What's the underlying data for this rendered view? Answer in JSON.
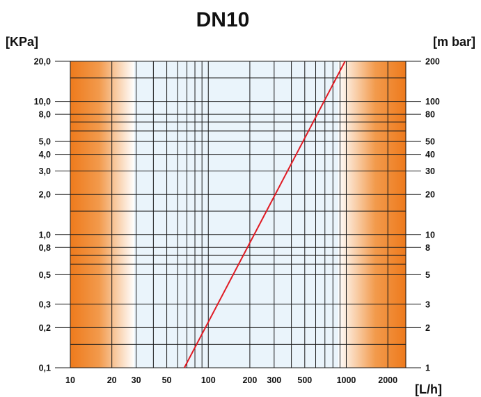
{
  "chart_data": {
    "type": "line",
    "title": "DN10",
    "left_unit": "[KPa]",
    "right_unit": "[m bar]",
    "x_unit": "[L/h]",
    "x_scale": "log",
    "y_scale": "log",
    "xlim": [
      10,
      2700
    ],
    "ylim": [
      0.1,
      20
    ],
    "x_ticks": [
      {
        "value": 10,
        "label": "10"
      },
      {
        "value": 20,
        "label": "20"
      },
      {
        "value": 30,
        "label": "30"
      },
      {
        "value": 50,
        "label": "50"
      },
      {
        "value": 100,
        "label": "100"
      },
      {
        "value": 200,
        "label": "200"
      },
      {
        "value": 300,
        "label": "300"
      },
      {
        "value": 500,
        "label": "500"
      },
      {
        "value": 1000,
        "label": "1000"
      },
      {
        "value": 2000,
        "label": "2000"
      }
    ],
    "y_ticks_left": [
      {
        "value": 20,
        "label": "20,0"
      },
      {
        "value": 10,
        "label": "10,0"
      },
      {
        "value": 8,
        "label": "8,0"
      },
      {
        "value": 5,
        "label": "5,0"
      },
      {
        "value": 4,
        "label": "4,0"
      },
      {
        "value": 3,
        "label": "3,0"
      },
      {
        "value": 2,
        "label": "2,0"
      },
      {
        "value": 1,
        "label": "1,0"
      },
      {
        "value": 0.8,
        "label": "0,8"
      },
      {
        "value": 0.5,
        "label": "0,5"
      },
      {
        "value": 0.3,
        "label": "0,3"
      },
      {
        "value": 0.2,
        "label": "0,2"
      },
      {
        "value": 0.1,
        "label": "0,1"
      }
    ],
    "y_ticks_right": [
      {
        "value": 20,
        "label": "200"
      },
      {
        "value": 10,
        "label": "100"
      },
      {
        "value": 8,
        "label": "80"
      },
      {
        "value": 5,
        "label": "50"
      },
      {
        "value": 4,
        "label": "40"
      },
      {
        "value": 3,
        "label": "30"
      },
      {
        "value": 2,
        "label": "20"
      },
      {
        "value": 1,
        "label": "10"
      },
      {
        "value": 0.8,
        "label": "8"
      },
      {
        "value": 0.5,
        "label": "5"
      },
      {
        "value": 0.3,
        "label": "3"
      },
      {
        "value": 0.2,
        "label": "2"
      },
      {
        "value": 0.1,
        "label": "1"
      }
    ],
    "minor_x_gridlines": [
      40,
      60,
      70,
      80,
      90,
      400,
      600,
      700,
      800,
      900
    ],
    "minor_y_gridlines": [
      0.15,
      0.6,
      0.7,
      1.5,
      6,
      7,
      15
    ],
    "shaded_regions": [
      {
        "from": 10,
        "to": 30,
        "color": "#ee7a1c",
        "fade": "right"
      },
      {
        "from": 1000,
        "to": 2700,
        "color": "#ee7a1c",
        "fade": "left"
      }
    ],
    "grid": true,
    "series": [
      {
        "color": "#e01b24",
        "points": [
          {
            "x": 67,
            "y": 0.1
          },
          {
            "x": 980,
            "y": 20
          }
        ]
      }
    ]
  }
}
